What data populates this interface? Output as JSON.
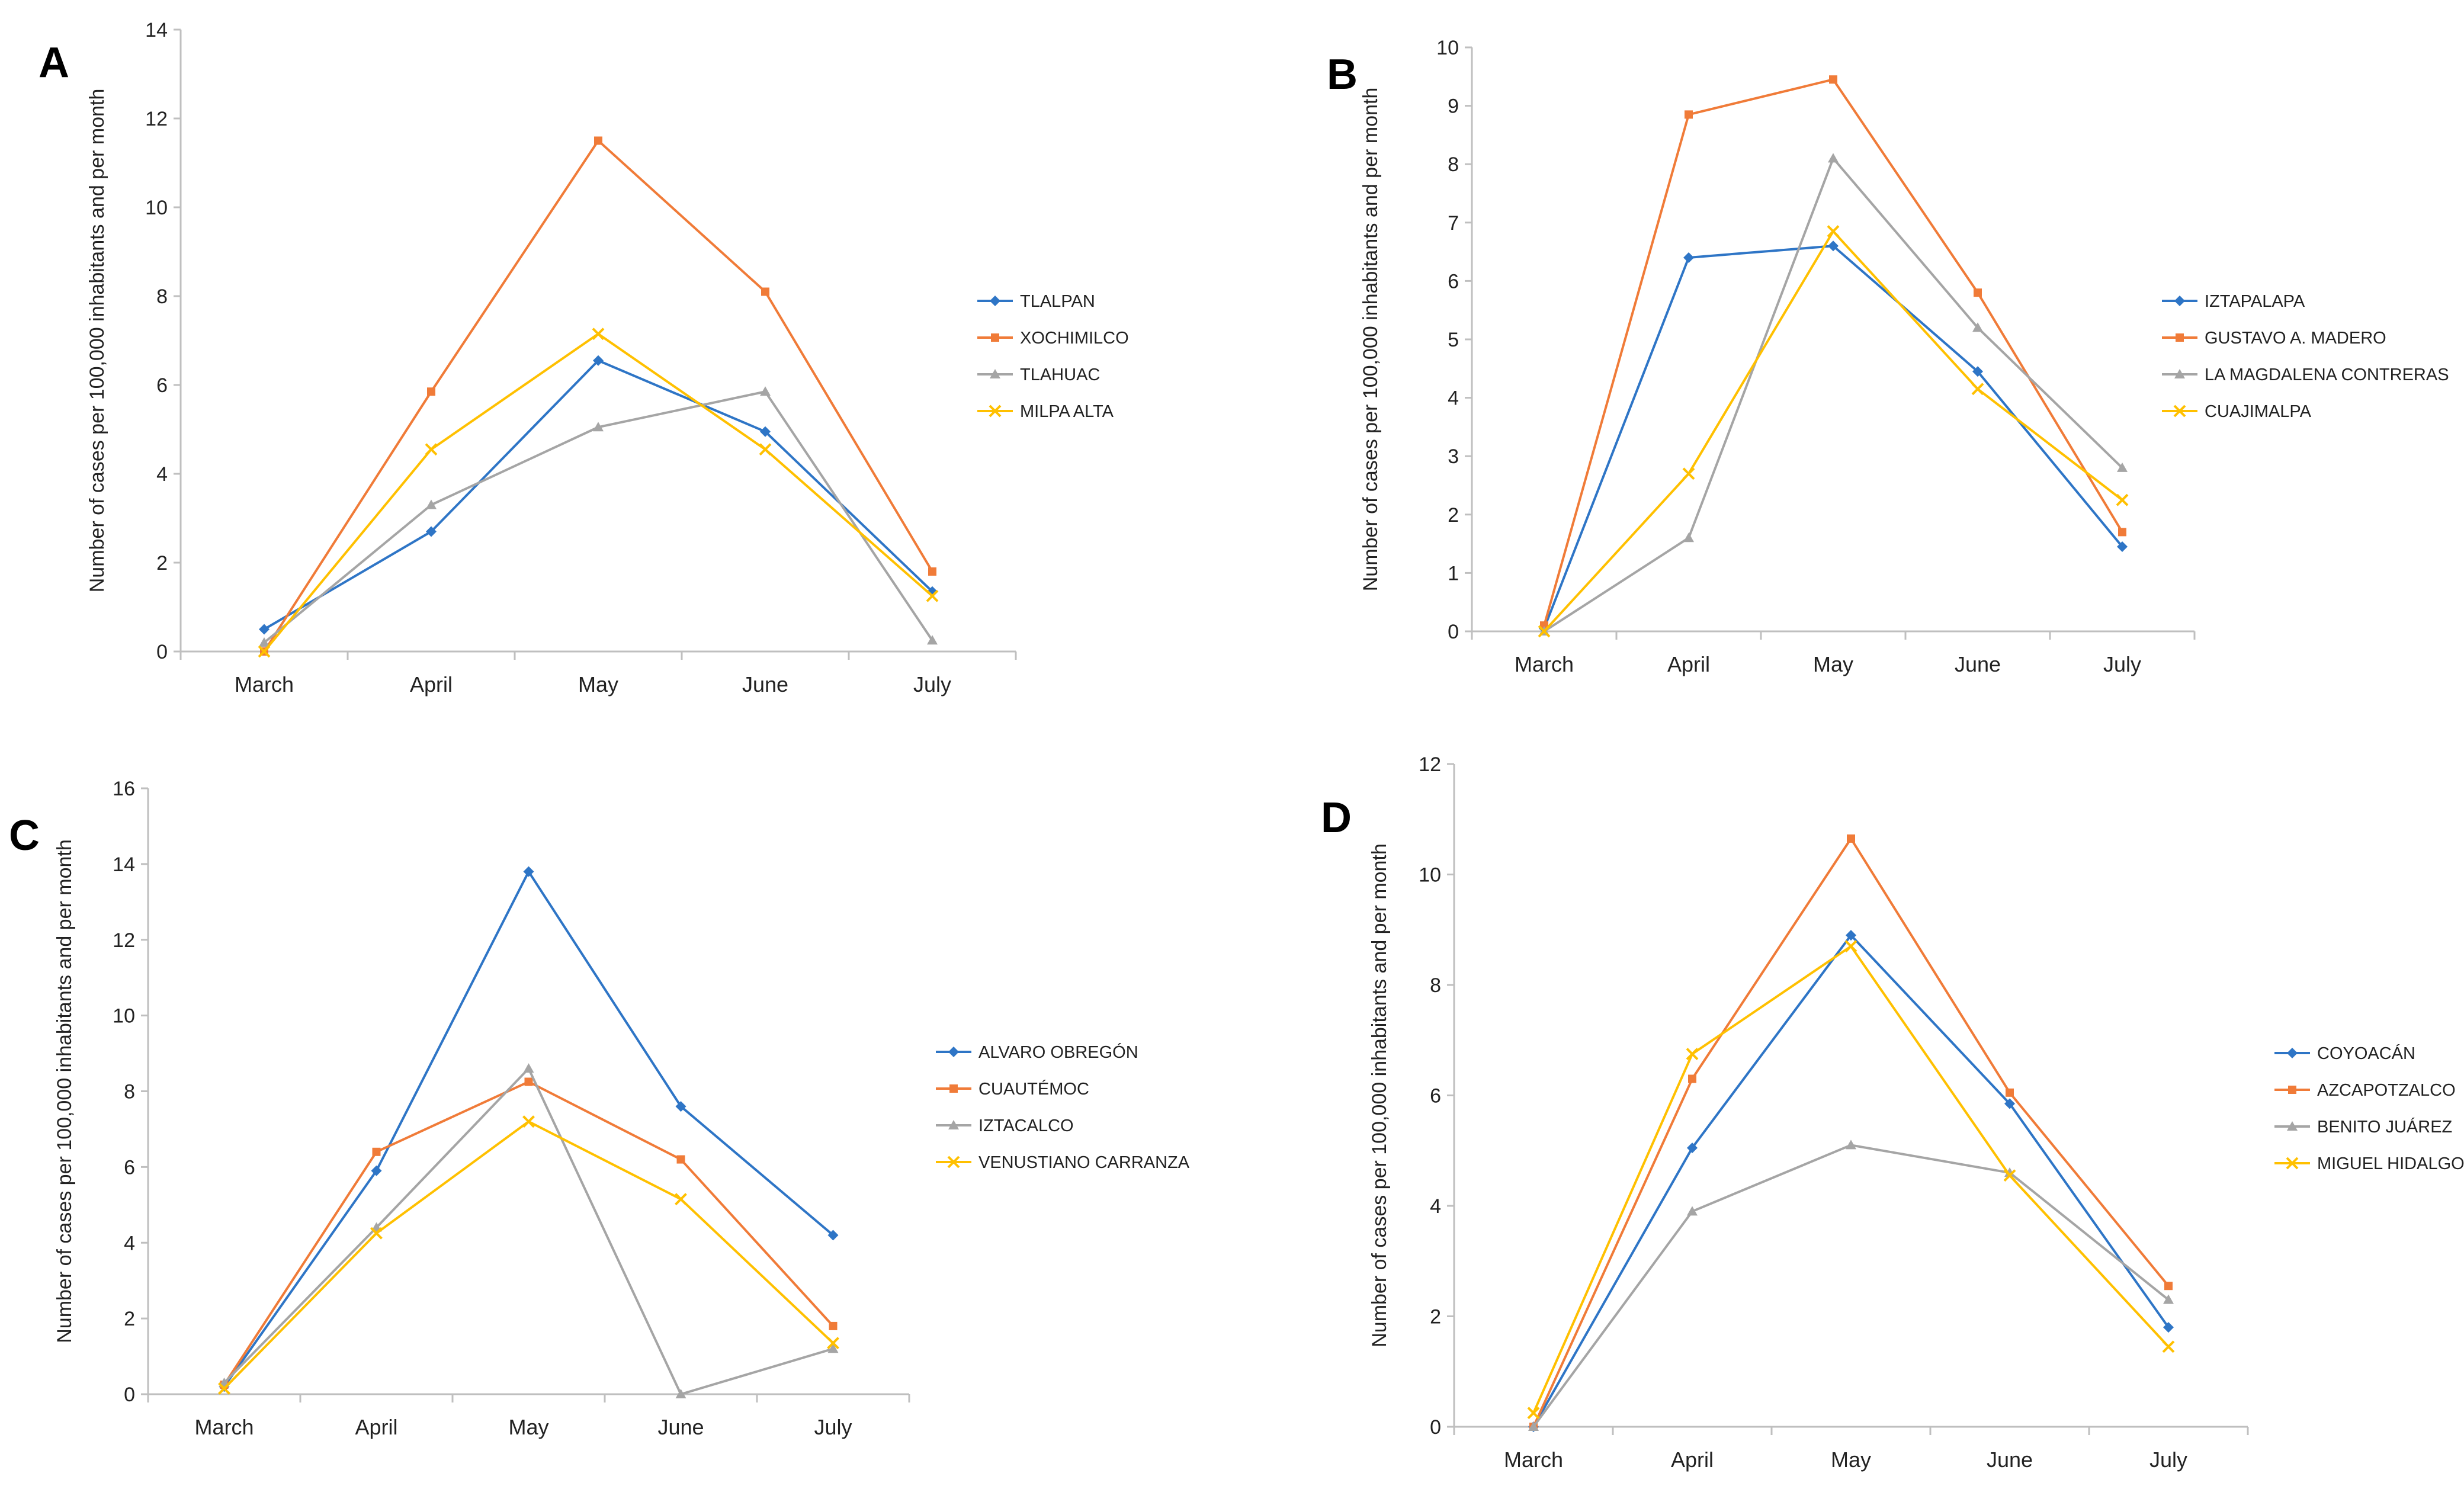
{
  "colors": {
    "blue": "#2E75C6",
    "orange": "#F07B38",
    "gray": "#A5A5A5",
    "yellow": "#FFC000",
    "axis": "#BFBFBF"
  },
  "chart_data": [
    {
      "type": "line",
      "panel": "A",
      "title": "",
      "xlabel": "",
      "ylabel": "Number of cases per 100,000 inhabitants and per month",
      "categories": [
        "March",
        "April",
        "May",
        "June",
        "July"
      ],
      "ylim": [
        0,
        14
      ],
      "yticks": [
        0,
        2,
        4,
        6,
        8,
        10,
        12,
        14
      ],
      "grid": false,
      "legend": "right",
      "series": [
        {
          "name": "TLALPAN",
          "color": "blue",
          "marker": "diamond",
          "values": [
            0.5,
            2.7,
            6.55,
            4.95,
            1.35
          ]
        },
        {
          "name": "XOCHIMILCO",
          "color": "orange",
          "marker": "square",
          "values": [
            0.0,
            5.85,
            11.5,
            8.1,
            1.8
          ]
        },
        {
          "name": "TLAHUAC",
          "color": "gray",
          "marker": "triangle",
          "values": [
            0.2,
            3.3,
            5.05,
            5.85,
            0.25
          ]
        },
        {
          "name": "MILPA ALTA",
          "color": "yellow",
          "marker": "x",
          "values": [
            0.0,
            4.55,
            7.15,
            4.55,
            1.25
          ]
        }
      ]
    },
    {
      "type": "line",
      "panel": "B",
      "title": "",
      "xlabel": "",
      "ylabel": "Number of cases per 100,000 inhabitants and per month",
      "categories": [
        "March",
        "April",
        "May",
        "June",
        "July"
      ],
      "ylim": [
        0,
        10
      ],
      "yticks": [
        0,
        1,
        2,
        3,
        4,
        5,
        6,
        7,
        8,
        9,
        10
      ],
      "grid": false,
      "legend": "right",
      "series": [
        {
          "name": "IZTAPALAPA",
          "color": "blue",
          "marker": "diamond",
          "values": [
            0.05,
            6.4,
            6.6,
            4.45,
            1.45
          ]
        },
        {
          "name": "GUSTAVO A. MADERO",
          "color": "orange",
          "marker": "square",
          "values": [
            0.1,
            8.85,
            9.45,
            5.8,
            1.7
          ]
        },
        {
          "name": "LA MAGDALENA CONTRERAS",
          "color": "gray",
          "marker": "triangle",
          "values": [
            0.0,
            1.6,
            8.1,
            5.2,
            2.8
          ]
        },
        {
          "name": "CUAJIMALPA",
          "color": "yellow",
          "marker": "x",
          "values": [
            0.0,
            2.7,
            6.85,
            4.15,
            2.25
          ]
        }
      ]
    },
    {
      "type": "line",
      "panel": "C",
      "title": "",
      "xlabel": "",
      "ylabel": "Number of cases per 100,000 inhabitants and per month",
      "categories": [
        "March",
        "April",
        "May",
        "June",
        "July"
      ],
      "ylim": [
        0,
        16
      ],
      "yticks": [
        0,
        2,
        4,
        6,
        8,
        10,
        12,
        14,
        16
      ],
      "grid": false,
      "legend": "right",
      "series": [
        {
          "name": "ALVARO OBREGÓN",
          "color": "blue",
          "marker": "diamond",
          "values": [
            0.2,
            5.9,
            13.8,
            7.6,
            4.2
          ]
        },
        {
          "name": "CUAUTÉMOC",
          "color": "orange",
          "marker": "square",
          "values": [
            0.25,
            6.4,
            8.25,
            6.2,
            1.8
          ]
        },
        {
          "name": "IZTACALCO",
          "color": "gray",
          "marker": "triangle",
          "values": [
            0.3,
            4.4,
            8.6,
            0.0,
            1.2
          ]
        },
        {
          "name": "VENUSTIANO CARRANZA",
          "color": "yellow",
          "marker": "x",
          "values": [
            0.15,
            4.25,
            7.2,
            5.15,
            1.35
          ]
        }
      ]
    },
    {
      "type": "line",
      "panel": "D",
      "title": "",
      "xlabel": "",
      "ylabel": "Number of cases per 100,000 inhabitants and per month",
      "categories": [
        "March",
        "April",
        "May",
        "June",
        "July"
      ],
      "ylim": [
        0,
        12
      ],
      "yticks": [
        0,
        2,
        4,
        6,
        8,
        10,
        12
      ],
      "grid": false,
      "legend": "right",
      "series": [
        {
          "name": "COYOACÁN",
          "color": "blue",
          "marker": "diamond",
          "values": [
            0.0,
            5.05,
            8.9,
            5.85,
            1.8
          ]
        },
        {
          "name": "AZCAPOTZALCO",
          "color": "orange",
          "marker": "square",
          "values": [
            0.0,
            6.3,
            10.65,
            6.05,
            2.55
          ]
        },
        {
          "name": "BENITO JUÁREZ",
          "color": "gray",
          "marker": "triangle",
          "values": [
            0.0,
            3.9,
            5.1,
            4.6,
            2.3
          ]
        },
        {
          "name": "MIGUEL HIDALGO",
          "color": "yellow",
          "marker": "x",
          "values": [
            0.25,
            6.75,
            8.7,
            4.55,
            1.45
          ]
        }
      ]
    }
  ]
}
